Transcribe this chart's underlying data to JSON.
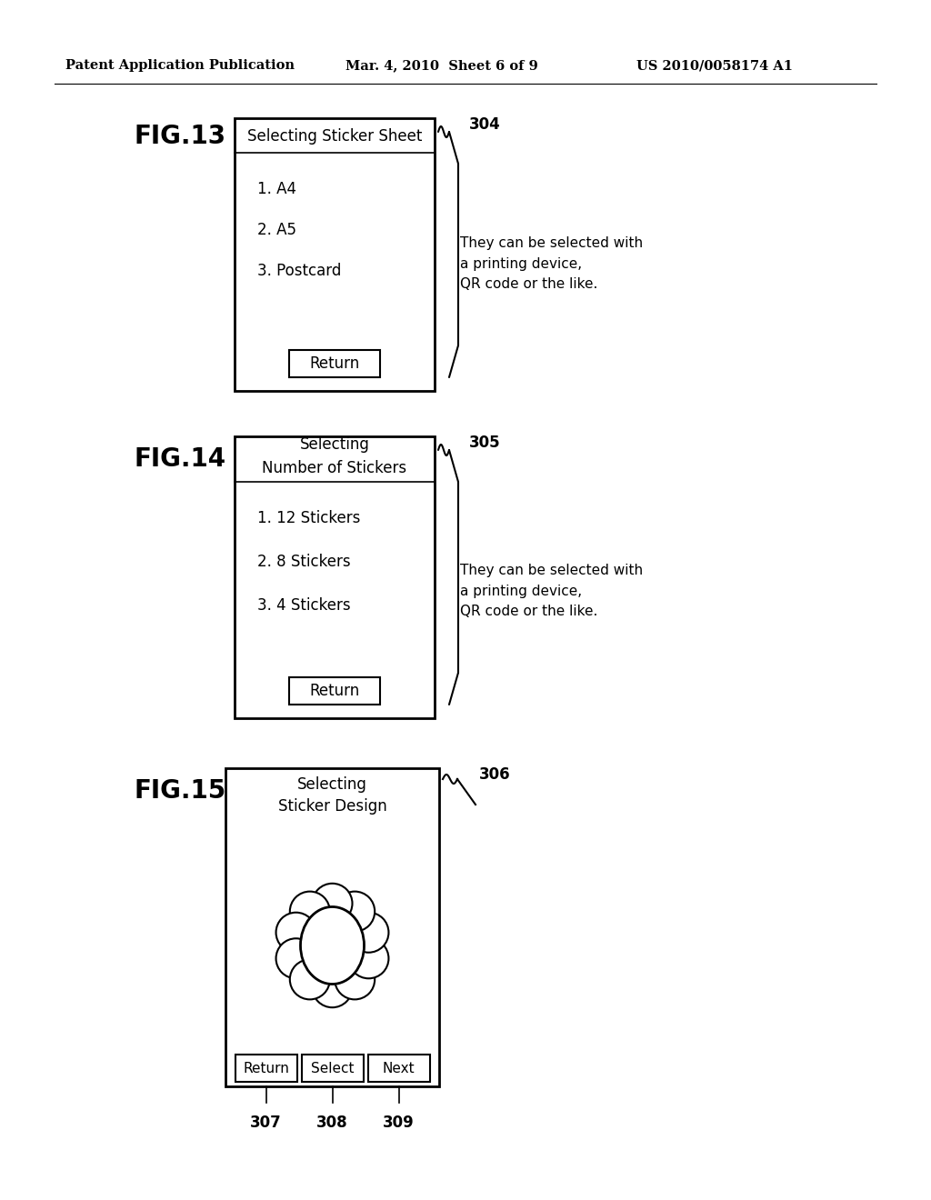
{
  "bg_color": "#ffffff",
  "header_left": "Patent Application Publication",
  "header_mid": "Mar. 4, 2010  Sheet 6 of 9",
  "header_right": "US 2010/0058174 A1",
  "fig13": {
    "label": "FIG.13",
    "title": "Selecting Sticker Sheet",
    "items": [
      "1. A4",
      "2. A5",
      "3. Postcard"
    ],
    "button": "Return",
    "ref_num": "304",
    "annotation": "They can be selected with\na printing device,\nQR code or the like."
  },
  "fig14": {
    "label": "FIG.14",
    "title": "Selecting\nNumber of Stickers",
    "items": [
      "1. 12 Stickers",
      "2. 8 Stickers",
      "3. 4 Stickers"
    ],
    "button": "Return",
    "ref_num": "305",
    "annotation": "They can be selected with\na printing device,\nQR code or the like."
  },
  "fig15": {
    "label": "FIG.15",
    "title": "Selecting\nSticker Design",
    "ref_num": "306",
    "buttons": [
      "Return",
      "Select",
      "Next"
    ],
    "btn_refs": [
      "307",
      "308",
      "309"
    ]
  }
}
